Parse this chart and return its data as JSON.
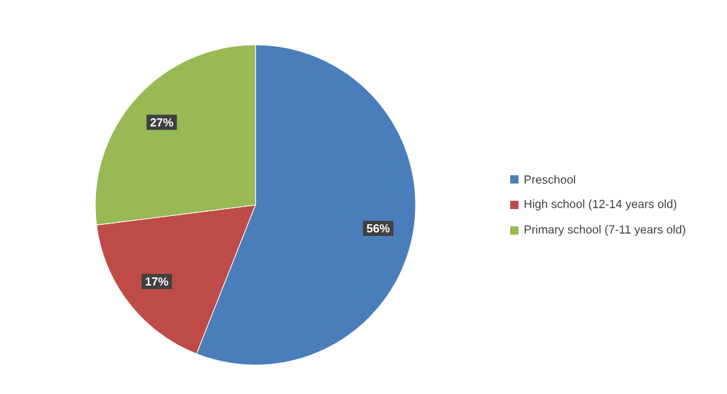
{
  "chart_data": {
    "type": "pie",
    "categories": [
      "Preschool",
      "High school (12-14 years old)",
      "Primary school (7-11 years old)"
    ],
    "values": [
      56,
      17,
      27
    ],
    "colors": [
      "#4a7ebb",
      "#be4b48",
      "#98b954"
    ],
    "value_labels": [
      "56%",
      "17%",
      "27%"
    ],
    "legend": "right"
  }
}
